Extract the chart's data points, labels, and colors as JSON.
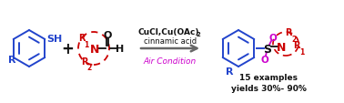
{
  "bg_color": "#ffffff",
  "arrow_color": "#666666",
  "blue_color": "#2244cc",
  "red_color": "#cc0000",
  "black_color": "#111111",
  "purple_color": "#cc00cc",
  "reagent_line1": "CuCl,Cu(OAc)",
  "reagent_sub": "2",
  "reagent_line2": "cinnamic acid",
  "air_condition": "Air Condition",
  "yield_line1": "15 examples",
  "yield_line2": "yields 30%- 90%",
  "figw": 3.78,
  "figh": 1.14,
  "dpi": 100
}
